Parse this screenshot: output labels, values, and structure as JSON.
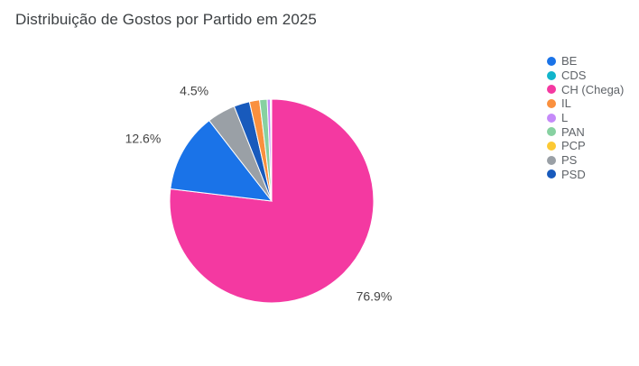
{
  "chart_data": {
    "type": "pie",
    "title": "Distribuição de Gostos por Partido em 2025",
    "legend_position": "right",
    "slices": [
      {
        "name": "CH (Chega)",
        "value": 76.9,
        "color": "#f439a1",
        "label": "76.9%"
      },
      {
        "name": "BE",
        "value": 12.6,
        "color": "#1a73e8",
        "label": "12.6%"
      },
      {
        "name": "PS",
        "value": 4.5,
        "color": "#9aa0a6",
        "label": "4.5%"
      },
      {
        "name": "PSD",
        "value": 2.5,
        "color": "#185abc",
        "label": ""
      },
      {
        "name": "IL",
        "value": 1.6,
        "color": "#fa903e",
        "label": ""
      },
      {
        "name": "PAN",
        "value": 1.2,
        "color": "#87d1a1",
        "label": ""
      },
      {
        "name": "L",
        "value": 0.5,
        "color": "#c58af9",
        "label": ""
      },
      {
        "name": "CDS",
        "value": 0.1,
        "color": "#12b5cb",
        "label": ""
      },
      {
        "name": "PCP",
        "value": 0.1,
        "color": "#fcc934",
        "label": ""
      }
    ],
    "legend": [
      {
        "name": "BE",
        "color": "#1a73e8"
      },
      {
        "name": "CDS",
        "color": "#12b5cb"
      },
      {
        "name": "CH (Chega)",
        "color": "#f439a1"
      },
      {
        "name": "IL",
        "color": "#fa903e"
      },
      {
        "name": "L",
        "color": "#c58af9"
      },
      {
        "name": "PAN",
        "color": "#87d1a1"
      },
      {
        "name": "PCP",
        "color": "#fcc934"
      },
      {
        "name": "PS",
        "color": "#9aa0a6"
      },
      {
        "name": "PSD",
        "color": "#185abc"
      }
    ]
  }
}
